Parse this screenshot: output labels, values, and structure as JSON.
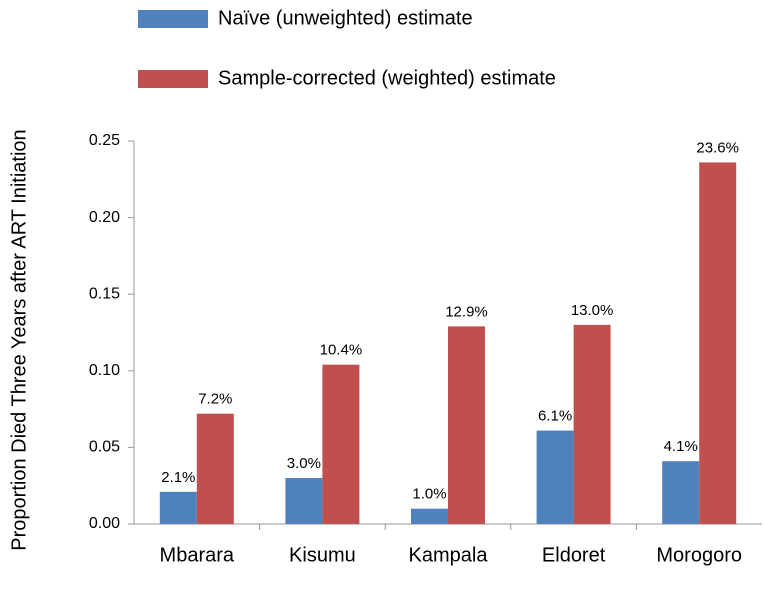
{
  "chart_data": {
    "type": "bar",
    "y_label": "Proportion Died Three Years after ART Initiation",
    "categories": [
      "Mbarara",
      "Kisumu",
      "Kampala",
      "Eldoret",
      "Morogoro"
    ],
    "series": [
      {
        "name": "Naïve (unweighted) estimate",
        "color": "#4f81bd",
        "values": [
          0.021,
          0.03,
          0.01,
          0.061,
          0.041
        ],
        "value_labels": [
          "2.1%",
          "3.0%",
          "1.0%",
          "6.1%",
          "4.1%"
        ]
      },
      {
        "name": "Sample-corrected (weighted) estimate",
        "color": "#c0504d",
        "values": [
          0.072,
          0.104,
          0.129,
          0.13,
          0.236
        ],
        "value_labels": [
          "7.2%",
          "10.4%",
          "12.9%",
          "13.0%",
          "23.6%"
        ]
      }
    ],
    "ylim": [
      0,
      0.25
    ],
    "yticks": [
      {
        "value": 0,
        "label": "0.00"
      },
      {
        "value": 0.05,
        "label": "0.05"
      },
      {
        "value": 0.1,
        "label": "0.10"
      },
      {
        "value": 0.15,
        "label": "0.15"
      },
      {
        "value": 0.2,
        "label": "0.20"
      },
      {
        "value": 0.25,
        "label": "0.25"
      }
    ],
    "grid": false
  }
}
